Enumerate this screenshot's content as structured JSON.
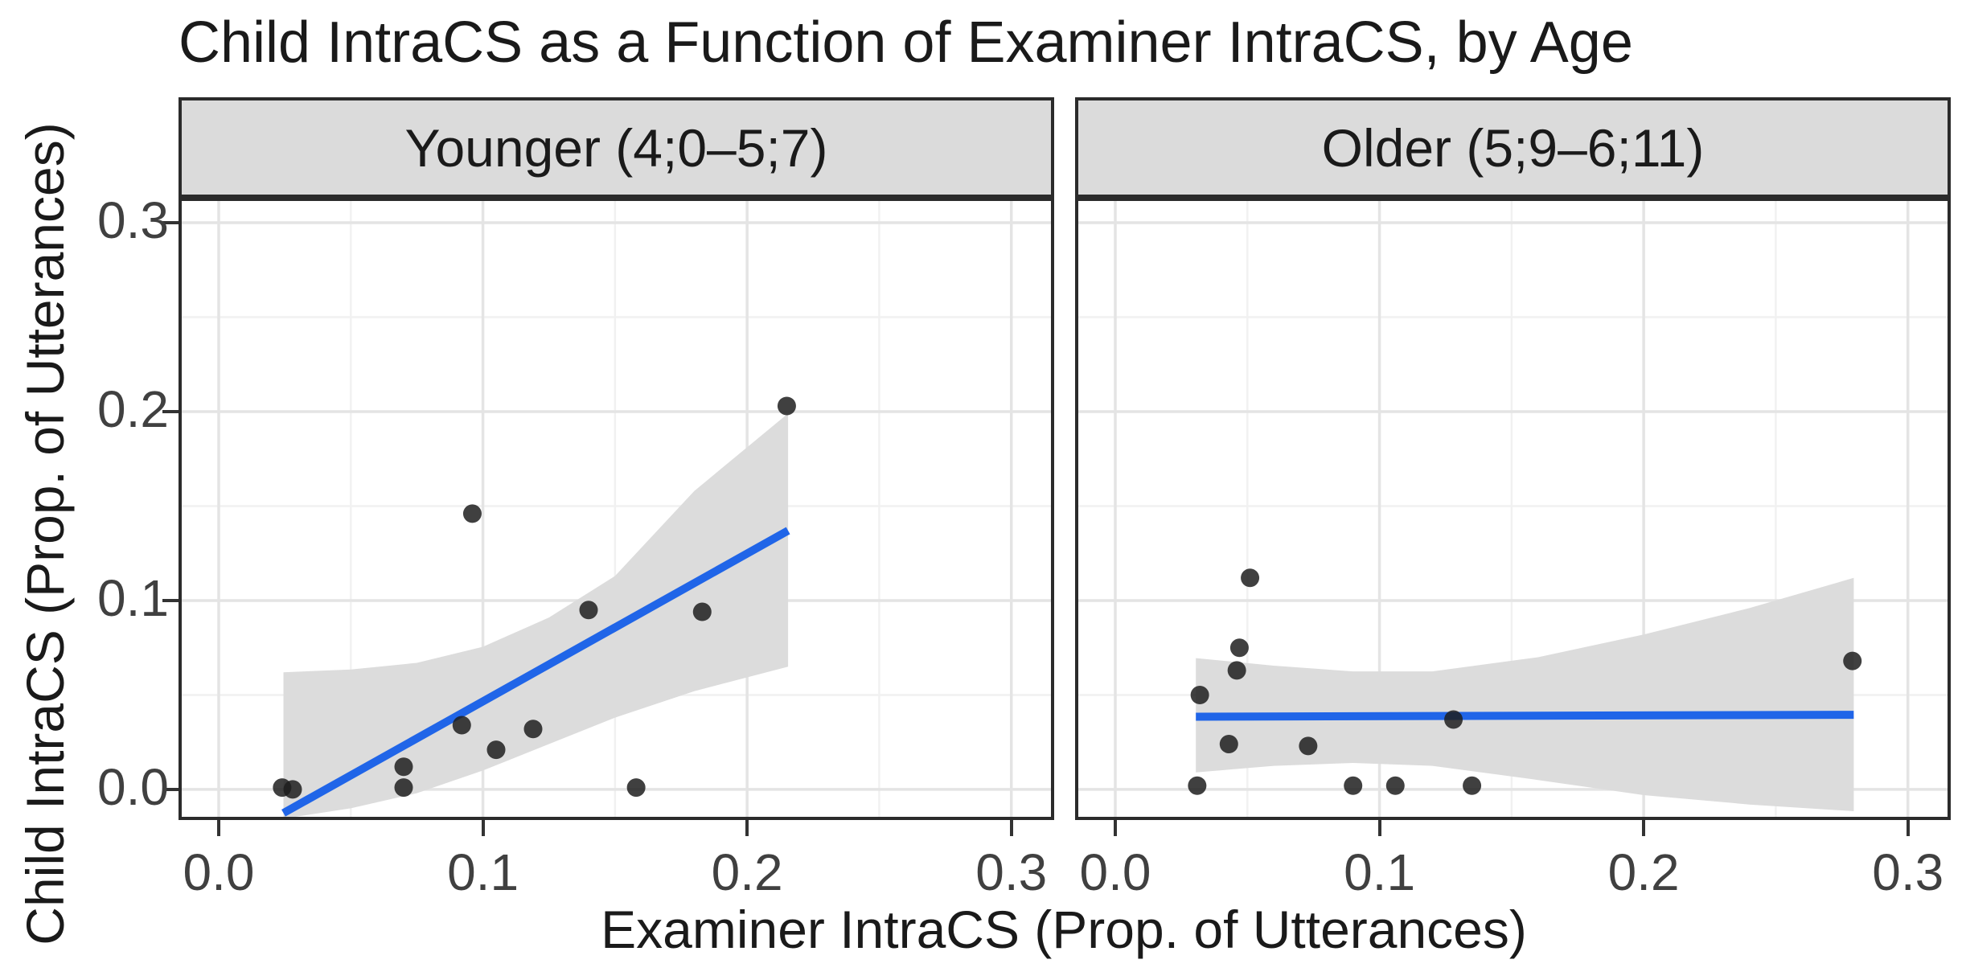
{
  "title": "Child IntraCS as a Function of Examiner IntraCS, by Age",
  "x_axis_title": "Examiner IntraCS (Prop. of Utterances)",
  "y_axis_title": "Child IntraCS (Prop. of Utterances)",
  "colors": {
    "regression_line": "#2065e8",
    "ci_band": "#dcdcdc",
    "point": "#1f1f1f",
    "grid_major": "#e4e4e4",
    "grid_minor": "#f1f1f1",
    "panel_border": "#2b2b2b",
    "strip_background": "#dbdbdb",
    "tick_text": "#404040"
  },
  "chart_data": {
    "type": "scatter",
    "grid": "on",
    "x_range": [
      -0.014,
      0.315
    ],
    "y_range": [
      -0.0145,
      0.3115
    ],
    "x_ticks": [
      0.0,
      0.1,
      0.2,
      0.3
    ],
    "y_ticks": [
      0.0,
      0.1,
      0.2,
      0.3
    ],
    "x_tick_labels": [
      "0.0",
      "0.1",
      "0.2",
      "0.3"
    ],
    "y_tick_labels": [
      "0.0",
      "0.1",
      "0.2",
      "0.3"
    ],
    "grid_major": [
      0.0,
      0.1,
      0.2,
      0.3
    ],
    "grid_minor": [
      0.05,
      0.15,
      0.25
    ],
    "point_radius_px": 11.5,
    "facets": [
      {
        "label": "Younger (4;0–5;7)",
        "points": [
          [
            0.024,
            0.001
          ],
          [
            0.028,
            0.0
          ],
          [
            0.07,
            0.012
          ],
          [
            0.07,
            0.001
          ],
          [
            0.092,
            0.034
          ],
          [
            0.096,
            0.146
          ],
          [
            0.105,
            0.021
          ],
          [
            0.119,
            0.032
          ],
          [
            0.14,
            0.095
          ],
          [
            0.158,
            0.001
          ],
          [
            0.183,
            0.094
          ],
          [
            0.215,
            0.203
          ]
        ],
        "regression": {
          "x": [
            0.0245,
            0.2155
          ],
          "y": [
            -0.0125,
            0.137
          ]
        },
        "ci_band": {
          "x": [
            0.0245,
            0.05,
            0.075,
            0.1,
            0.125,
            0.15,
            0.18,
            0.2155
          ],
          "top": [
            0.062,
            0.0635,
            0.067,
            0.0755,
            0.091,
            0.113,
            0.158,
            0.199
          ],
          "bottom": [
            -0.0155,
            -0.01,
            -0.002,
            0.01,
            0.024,
            0.038,
            0.052,
            0.065
          ]
        }
      },
      {
        "label": "Older (5;9–6;11)",
        "points": [
          [
            0.031,
            0.002
          ],
          [
            0.032,
            0.05
          ],
          [
            0.043,
            0.024
          ],
          [
            0.046,
            0.063
          ],
          [
            0.047,
            0.075
          ],
          [
            0.051,
            0.112
          ],
          [
            0.073,
            0.023
          ],
          [
            0.09,
            0.002
          ],
          [
            0.106,
            0.002
          ],
          [
            0.128,
            0.037
          ],
          [
            0.135,
            0.002
          ],
          [
            0.279,
            0.068
          ]
        ],
        "regression": {
          "x": [
            0.0305,
            0.2795
          ],
          "y": [
            0.0385,
            0.0395
          ]
        },
        "ci_band": {
          "x": [
            0.0305,
            0.06,
            0.09,
            0.12,
            0.16,
            0.2,
            0.24,
            0.2795
          ],
          "top": [
            0.0695,
            0.0655,
            0.0625,
            0.0625,
            0.07,
            0.082,
            0.096,
            0.112
          ],
          "bottom": [
            0.009,
            0.0125,
            0.014,
            0.0125,
            0.005,
            -0.003,
            -0.008,
            -0.0115
          ]
        }
      }
    ]
  }
}
